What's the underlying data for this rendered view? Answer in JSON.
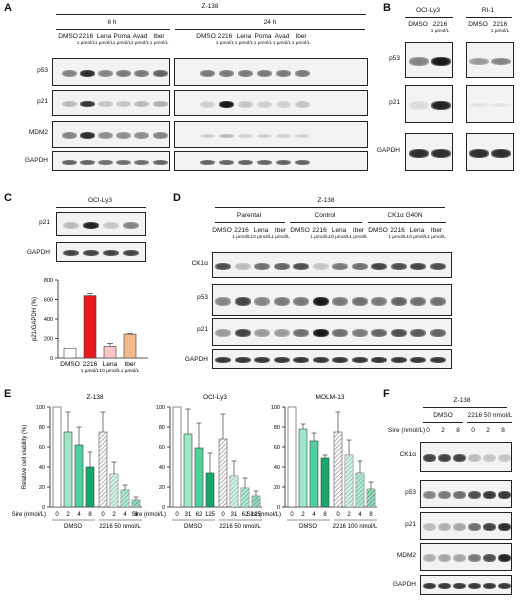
{
  "panels": {
    "A": {
      "letter": "A",
      "cell_line": "Z-138",
      "timepoints": [
        "6 h",
        "24 h"
      ],
      "lanes": [
        "DMSO",
        "2216",
        "Lena",
        "Poma",
        "Avad",
        "Iber"
      ],
      "doses": [
        "",
        "1 µmol/L",
        "1 µmol/L",
        "1 µmol/L",
        "1 µmol/L",
        "1 µmol/L"
      ],
      "rows": [
        "p53",
        "p21",
        "MDM2",
        "GAPDH"
      ]
    },
    "B": {
      "letter": "B",
      "groups": [
        "OCI-Ly3",
        "RI-1"
      ],
      "lanes": [
        "DMSO",
        "2216",
        "DMSO",
        "2216"
      ],
      "doses": [
        "",
        "1 µmol/L",
        "",
        "1 µmol/L"
      ],
      "rows": [
        "p53",
        "p21",
        "GAPDH"
      ]
    },
    "C": {
      "letter": "C",
      "cell_line": "OCI-Ly3",
      "rows": [
        "p21",
        "GAPDH"
      ],
      "lanes": [
        "DMSO",
        "2216",
        "Lena",
        "Iber"
      ],
      "doses": [
        "",
        "1 µmol/L",
        "10 µmol/L",
        "1 µmol/L"
      ]
    },
    "D": {
      "letter": "D",
      "cell_line": "Z-138",
      "groups": [
        "Parental",
        "Control",
        "CK1α G40N"
      ],
      "lanes": [
        "DMSO",
        "2216",
        "Lena",
        "Iber",
        "DMSO",
        "2216",
        "Lena",
        "Iber",
        "DMSO",
        "2216",
        "Lena",
        "Iber"
      ],
      "doses": [
        "",
        "1 µmol/L",
        "10 µmol/L",
        "1 µmol/L",
        "",
        "1 µmol/L",
        "10 µmol/L",
        "1 µmol/L",
        "",
        "1 µmol/L",
        "10 µmol/L",
        "1 µmol/L"
      ],
      "rows": [
        "CK1α",
        "p53",
        "p21",
        "GAPDH"
      ]
    },
    "E": {
      "letter": "E",
      "sire_label": "Sire (nmol/L)"
    },
    "F": {
      "letter": "F",
      "cell_line": "Z-138",
      "group_dmso": "DMSO",
      "group_2216": "2216 50 nmol/L",
      "sire_label": "Sire (nmol/L)",
      "sire_doses": [
        "0",
        "2",
        "8",
        "0",
        "2",
        "8"
      ],
      "rows": [
        "CK1α",
        "p53",
        "p21",
        "MDM2",
        "GAPDH"
      ]
    }
  },
  "chart_data": [
    {
      "type": "bar",
      "panel": "C",
      "categories": [
        "DMSO",
        "2216",
        "Lena",
        "Iber"
      ],
      "category_doses": [
        "",
        "1 µmol/L",
        "10 µmol/L",
        "1 µmol/L"
      ],
      "values": [
        100,
        640,
        120,
        245
      ],
      "errors": [
        0,
        20,
        30,
        5
      ],
      "ylabel": "p21/GAPDH (%)",
      "ylim": [
        0,
        800
      ],
      "yticks": [
        0,
        200,
        400,
        600,
        800
      ],
      "colors": [
        "#ffffff",
        "#e41a1c",
        "#f7c6c2",
        "#f5b889"
      ]
    },
    {
      "type": "bar",
      "panel": "E",
      "title": "Z-138",
      "ylabel": "Relative cell viability (%)",
      "ylim": [
        0,
        100
      ],
      "yticks": [
        0,
        20,
        40,
        60,
        80,
        100
      ],
      "x_label": "Sire (nmol/L)",
      "categories": [
        "0",
        "2",
        "4",
        "8",
        "0",
        "2",
        "4",
        "8"
      ],
      "groups": [
        "DMSO",
        "2216 50 nmol/L"
      ],
      "values": [
        100,
        75,
        62,
        40,
        75,
        33,
        17,
        7
      ],
      "errors": [
        0,
        20,
        18,
        15,
        20,
        12,
        5,
        3
      ]
    },
    {
      "type": "bar",
      "panel": "E",
      "title": "OCI-Ly3",
      "ylim": [
        0,
        100
      ],
      "yticks": [
        0,
        20,
        40,
        60,
        80,
        100
      ],
      "x_label": "Sire (nmol/L)",
      "categories": [
        "0",
        "31",
        "62",
        "125",
        "0",
        "31",
        "62",
        "125"
      ],
      "groups": [
        "DMSO",
        "2216 50 nmol/L"
      ],
      "values": [
        100,
        73,
        59,
        34,
        68,
        31,
        19,
        11
      ],
      "errors": [
        0,
        25,
        25,
        20,
        25,
        15,
        10,
        5
      ]
    },
    {
      "type": "bar",
      "panel": "E",
      "title": "MOLM-13",
      "ylim": [
        0,
        100
      ],
      "yticks": [
        0,
        20,
        40,
        60,
        80,
        100
      ],
      "x_label": "Sire (nmol/L)",
      "categories": [
        "0",
        "2",
        "4",
        "8",
        "0",
        "2",
        "4",
        "8"
      ],
      "groups": [
        "DMSO",
        "2216 100 nmol/L"
      ],
      "values": [
        100,
        78,
        66,
        49,
        75,
        52,
        34,
        18
      ],
      "errors": [
        0,
        5,
        8,
        3,
        20,
        15,
        12,
        7
      ]
    }
  ]
}
